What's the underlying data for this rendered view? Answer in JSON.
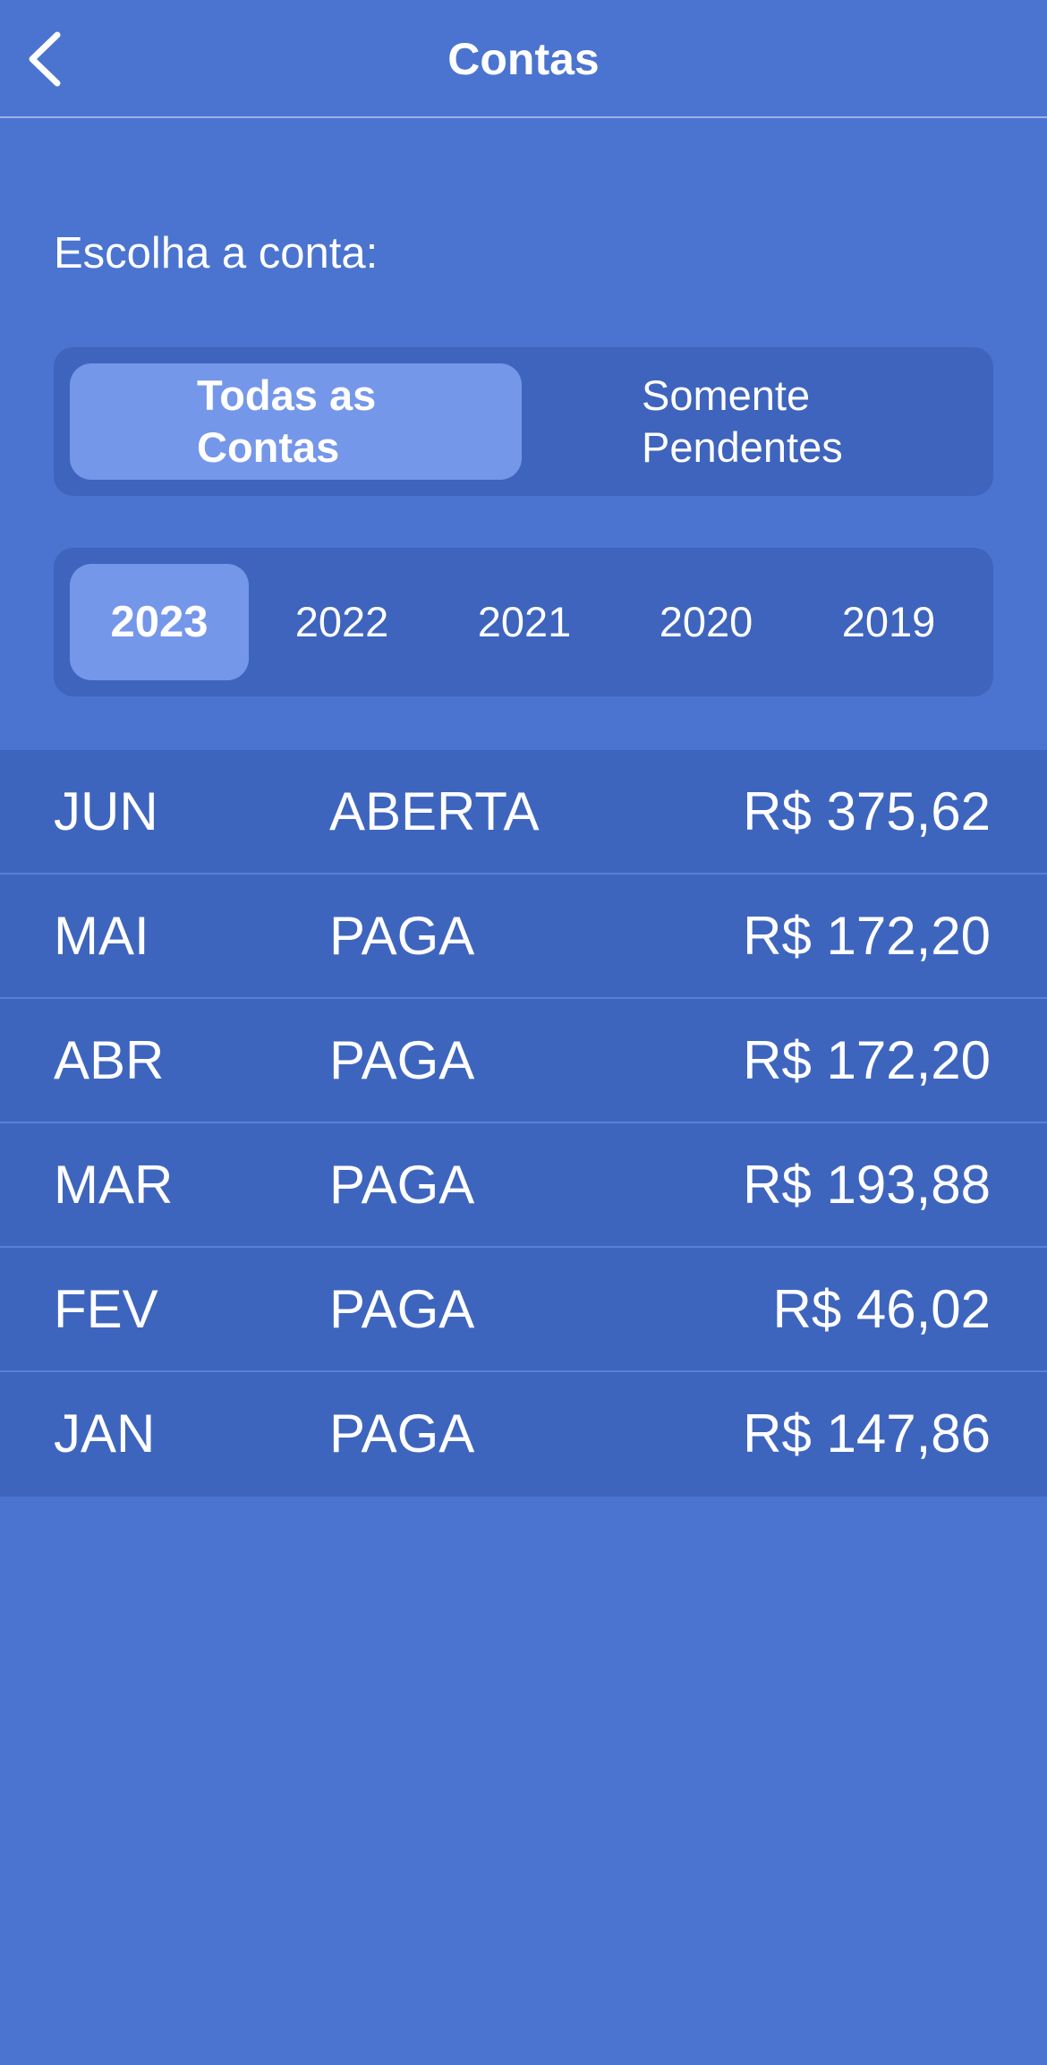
{
  "header": {
    "title": "Contas",
    "back_icon": "chevron-left-icon"
  },
  "prompt": "Escolha a conta:",
  "filter": {
    "options": [
      "Todas as Contas",
      "Somente Pendentes"
    ],
    "selected": "Todas as Contas"
  },
  "years": {
    "options": [
      "2023",
      "2022",
      "2021",
      "2020",
      "2019"
    ],
    "selected": "2023"
  },
  "bills": [
    {
      "month": "JUN",
      "status": "ABERTA",
      "amount": "R$ 375,62"
    },
    {
      "month": "MAI",
      "status": "PAGA",
      "amount": "R$ 172,20"
    },
    {
      "month": "ABR",
      "status": "PAGA",
      "amount": "R$ 172,20"
    },
    {
      "month": "MAR",
      "status": "PAGA",
      "amount": "R$ 193,88"
    },
    {
      "month": "FEV",
      "status": "PAGA",
      "amount": "R$ 46,02"
    },
    {
      "month": "JAN",
      "status": "PAGA",
      "amount": "R$ 147,86"
    }
  ],
  "colors": {
    "background": "#4a74cf",
    "segment_track": "#3e64bd",
    "segment_active": "#7597e9",
    "row_background": "#3e65be",
    "text": "#ffffff"
  }
}
